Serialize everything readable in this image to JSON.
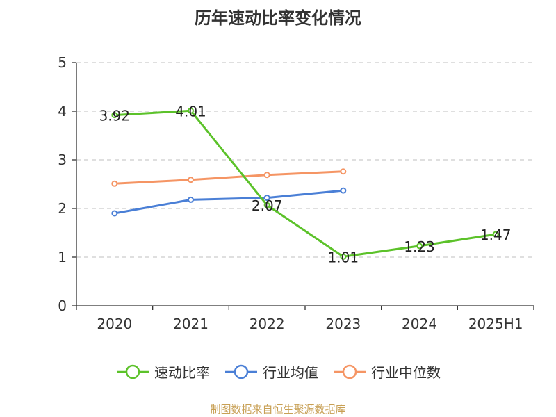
{
  "chart_data": {
    "type": "line",
    "title": "历年速动比率变化情况",
    "categories": [
      "2020",
      "2021",
      "2022",
      "2023",
      "2024",
      "2025H1"
    ],
    "ylim": [
      0,
      5
    ],
    "yticks": [
      0,
      1,
      2,
      3,
      4,
      5
    ],
    "grid": true,
    "legend_position": "bottom",
    "series": [
      {
        "name": "速动比率",
        "color": "#5cc22a",
        "values": [
          3.92,
          4.01,
          2.07,
          1.01,
          1.23,
          1.47
        ],
        "labels": [
          "3.92",
          "4.01",
          "2.07",
          "1.01",
          "1.23",
          "1.47"
        ]
      },
      {
        "name": "行业均值",
        "color": "#4a7fd6",
        "values": [
          1.9,
          2.18,
          2.22,
          2.37,
          null,
          null
        ]
      },
      {
        "name": "行业中位数",
        "color": "#f59564",
        "values": [
          2.51,
          2.59,
          2.69,
          2.76,
          null,
          null
        ]
      }
    ]
  },
  "footer": {
    "source": "制图数据来自恒生聚源数据库"
  }
}
